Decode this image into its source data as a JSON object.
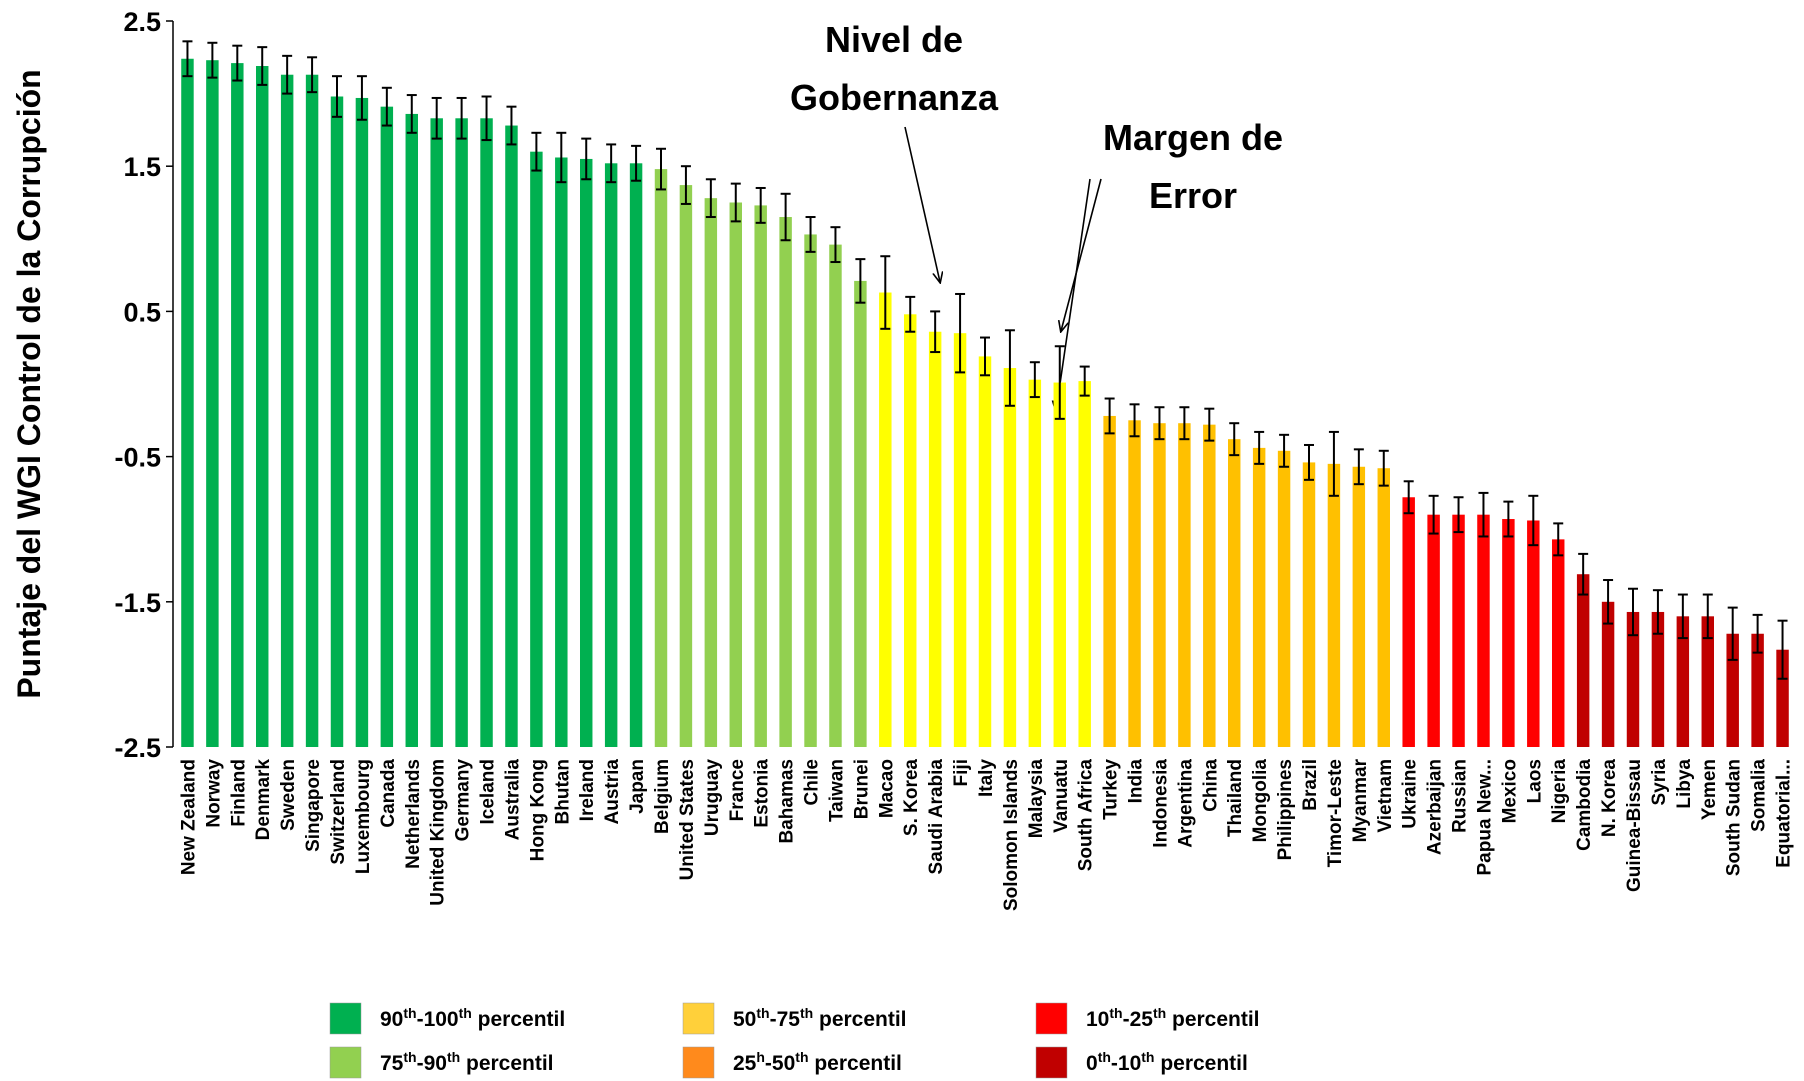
{
  "chart_data": {
    "type": "bar",
    "y_label": "Puntaje del WGI Control de la Corrupción",
    "ylim": [
      -2.5,
      2.5
    ],
    "yticks": [
      2.5,
      1.5,
      0.5,
      -0.5,
      -1.5,
      -2.5
    ],
    "categories": [
      "New Zealand",
      "Norway",
      "Finland",
      "Denmark",
      "Sweden",
      "Singapore",
      "Switzerland",
      "Luxembourg",
      "Canada",
      "Netherlands",
      "United Kingdom",
      "Germany",
      "Iceland",
      "Australia",
      "Hong Kong",
      "Bhutan",
      "Ireland",
      "Austria",
      "Japan",
      "Belgium",
      "United States",
      "Uruguay",
      "France",
      "Estonia",
      "Bahamas",
      "Chile",
      "Taiwan",
      "Brunei",
      "Macao",
      "S. Korea",
      "Saudi Arabia",
      "Fiji",
      "Italy",
      "Solomon Islands",
      "Malaysia",
      "Vanuatu",
      "South Africa",
      "Turkey",
      "India",
      "Indonesia",
      "Argentina",
      "China",
      "Thailand",
      "Mongolia",
      "Philippines",
      "Brazil",
      "Timor-Leste",
      "Myanmar",
      "Vietnam",
      "Ukraine",
      "Azerbaijan",
      "Russian",
      "Papua New...",
      "Mexico",
      "Laos",
      "Nigeria",
      "Cambodia",
      "N. Korea",
      "Guinea-Bissau",
      "Syria",
      "Libya",
      "Yemen",
      "South Sudan",
      "Somalia",
      "Equatorial..."
    ],
    "values": [
      2.24,
      2.23,
      2.21,
      2.19,
      2.13,
      2.13,
      1.98,
      1.97,
      1.91,
      1.86,
      1.83,
      1.83,
      1.83,
      1.78,
      1.6,
      1.56,
      1.55,
      1.52,
      1.52,
      1.48,
      1.37,
      1.28,
      1.25,
      1.23,
      1.15,
      1.03,
      0.96,
      0.71,
      0.63,
      0.48,
      0.36,
      0.35,
      0.19,
      0.11,
      0.03,
      0.01,
      0.02,
      -0.22,
      -0.25,
      -0.27,
      -0.27,
      -0.28,
      -0.38,
      -0.44,
      -0.46,
      -0.54,
      -0.55,
      -0.57,
      -0.58,
      -0.78,
      -0.9,
      -0.9,
      -0.9,
      -0.93,
      -0.94,
      -1.07,
      -1.31,
      -1.5,
      -1.57,
      -1.57,
      -1.6,
      -1.6,
      -1.72,
      -1.72,
      -1.83
    ],
    "errors": [
      0.12,
      0.12,
      0.12,
      0.13,
      0.13,
      0.12,
      0.14,
      0.15,
      0.13,
      0.13,
      0.14,
      0.14,
      0.15,
      0.13,
      0.13,
      0.17,
      0.14,
      0.13,
      0.12,
      0.14,
      0.13,
      0.13,
      0.13,
      0.12,
      0.16,
      0.12,
      0.12,
      0.15,
      0.25,
      0.12,
      0.14,
      0.27,
      0.13,
      0.26,
      0.12,
      0.25,
      0.1,
      0.12,
      0.11,
      0.11,
      0.11,
      0.11,
      0.11,
      0.11,
      0.11,
      0.12,
      0.22,
      0.12,
      0.12,
      0.11,
      0.13,
      0.12,
      0.15,
      0.12,
      0.17,
      0.11,
      0.14,
      0.15,
      0.16,
      0.15,
      0.15,
      0.15,
      0.18,
      0.13,
      0.2
    ],
    "groups": [
      0,
      0,
      0,
      0,
      0,
      0,
      0,
      0,
      0,
      0,
      0,
      0,
      0,
      0,
      0,
      0,
      0,
      0,
      0,
      1,
      1,
      1,
      1,
      1,
      1,
      1,
      1,
      1,
      2,
      2,
      2,
      2,
      2,
      2,
      2,
      2,
      2,
      3,
      3,
      3,
      3,
      3,
      3,
      3,
      3,
      3,
      3,
      3,
      3,
      4,
      4,
      4,
      4,
      4,
      4,
      4,
      5,
      5,
      5,
      5,
      5,
      5,
      5,
      5,
      5
    ],
    "legend": [
      {
        "label_parts": [
          "90",
          "th",
          "-100",
          "th",
          " percentil"
        ],
        "color": "#00b050",
        "legend_color": "#00b050"
      },
      {
        "label_parts": [
          "75",
          "th",
          "-90",
          "th",
          " percentil"
        ],
        "color": "#92d050",
        "legend_color": "#92d050"
      },
      {
        "label_parts": [
          "50",
          "th",
          "-75",
          "th",
          " percentil"
        ],
        "color": "#ffff00",
        "legend_color": "#ffd03a"
      },
      {
        "label_parts": [
          "25",
          "h",
          "-50",
          "th",
          " percentil"
        ],
        "color": "#ffc000",
        "legend_color": "#ff8a1c"
      },
      {
        "label_parts": [
          "10",
          "th",
          "-25",
          "th",
          " percentil"
        ],
        "color": "#ff0000",
        "legend_color": "#ff0000"
      },
      {
        "label_parts": [
          "0",
          "th",
          "-10",
          "th",
          " percentil"
        ],
        "color": "#c00000",
        "legend_color": "#c00000"
      }
    ],
    "annotations": [
      {
        "lines": [
          "Nivel de",
          "Gobernanza"
        ]
      },
      {
        "lines": [
          "Margen de",
          "Error"
        ]
      }
    ]
  }
}
